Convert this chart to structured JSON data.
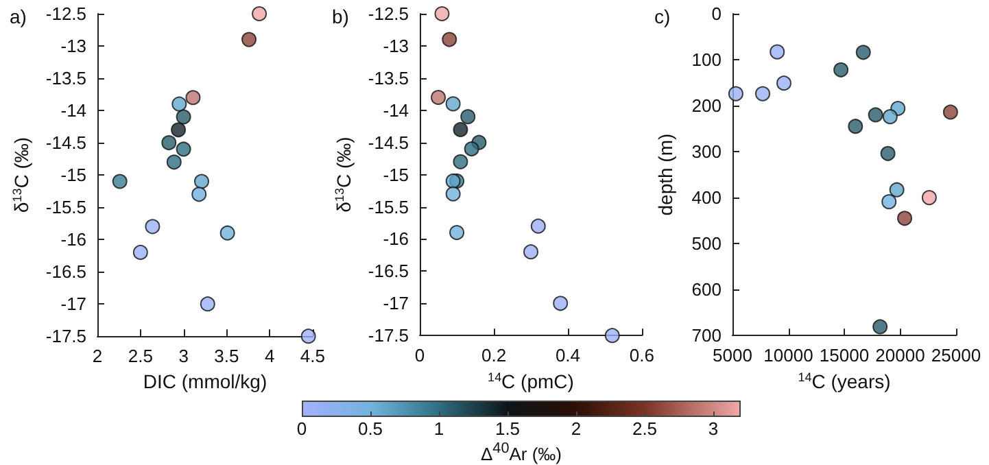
{
  "chart_data": [
    {
      "type": "scatter",
      "title": "a)",
      "xlabel": "DIC (mmol/kg)",
      "ylabel": "δ$^{13}$C (‰)",
      "marker": "circle",
      "xlim": [
        2,
        4.5
      ],
      "xticks": [
        2,
        2.5,
        3,
        3.5,
        4,
        4.5
      ],
      "ylim": [
        -17.5,
        -12.5
      ],
      "yticks": [
        -17.5,
        -17,
        -16.5,
        -16,
        -15.5,
        -15,
        -14.5,
        -14,
        -13.5,
        -13,
        -12.5
      ],
      "x": [
        3.88,
        3.76,
        3.11,
        2.95,
        3.0,
        2.94,
        2.83,
        3.0,
        2.89,
        2.26,
        3.21,
        3.18,
        2.64,
        2.5,
        3.51,
        3.28,
        4.45
      ],
      "values": [
        -12.5,
        -12.9,
        -13.8,
        -13.9,
        -14.1,
        -14.3,
        -14.5,
        -14.6,
        -14.8,
        -15.1,
        -15.1,
        -15.3,
        -15.8,
        -16.2,
        -15.9,
        -17.0,
        -17.5
      ],
      "colors": [
        "#f0a8a8",
        "#8b4338",
        "#be7670",
        "#63a7cc",
        "#285c6c",
        "#14262d",
        "#285c6c",
        "#2e6e80",
        "#2e6e80",
        "#3b7c93",
        "#63a7cc",
        "#70b3dd",
        "#99b1f5",
        "#99b1f5",
        "#70b3dd",
        "#99b1f5",
        "#9eb1f8"
      ]
    },
    {
      "type": "scatter",
      "title": "b)",
      "xlabel": "$^{14}$C (pmC)",
      "ylabel": "δ$^{13}$C (‰)",
      "marker": "circle",
      "xlim": [
        0,
        0.6
      ],
      "xticks": [
        0,
        0.2,
        0.4,
        0.6
      ],
      "ylim": [
        -17.5,
        -12.5
      ],
      "yticks": [
        -17.5,
        -17,
        -16.5,
        -16,
        -15.5,
        -15,
        -14.5,
        -14,
        -13.5,
        -13,
        -12.5
      ],
      "clim": [
        0,
        3.2
      ],
      "clabel": "Δ$^{40}$Ar (‰)",
      "cticks": [
        0,
        0.5,
        1,
        1.5,
        2,
        2.5,
        3
      ],
      "x": [
        0.06,
        0.08,
        0.05,
        0.09,
        0.13,
        0.11,
        0.16,
        0.14,
        0.11,
        0.1,
        0.09,
        0.09,
        0.32,
        0.3,
        0.1,
        0.38,
        0.52
      ],
      "values": [
        -12.5,
        -12.9,
        -13.8,
        -13.9,
        -14.1,
        -14.3,
        -14.5,
        -14.6,
        -14.8,
        -15.1,
        -15.1,
        -15.3,
        -15.8,
        -16.2,
        -15.9,
        -17.0,
        -17.5
      ],
      "cvalues": [
        3.2,
        2.6,
        2.9,
        0.6,
        1.1,
        1.4,
        1.1,
        1.0,
        1.0,
        0.9,
        0.6,
        0.5,
        0.1,
        0.1,
        0.5,
        0.1,
        0.05
      ]
    },
    {
      "type": "scatter",
      "title": "c)",
      "xlabel": "$^{14}$C (years)",
      "ylabel": "depth (m)",
      "marker": "circle",
      "xlim": [
        5000,
        25000
      ],
      "xticks": [
        5000,
        10000,
        15000,
        20000,
        25000
      ],
      "ylim": [
        700,
        0
      ],
      "yticks": [
        0,
        100,
        200,
        300,
        400,
        500,
        600,
        700
      ],
      "x": [
        9000,
        5300,
        7700,
        9600,
        16700,
        14700,
        19800,
        17800,
        19100,
        24500,
        16000,
        18900,
        19700,
        19000,
        22600,
        20400,
        18200
      ],
      "values": [
        83,
        174,
        174,
        151,
        84,
        122,
        206,
        220,
        224,
        214,
        245,
        304,
        383,
        409,
        400,
        445,
        681
      ],
      "colors": [
        "#99b1f5",
        "#99b1f5",
        "#99b1f5",
        "#99b1f5",
        "#285c6c",
        "#285c6c",
        "#63a7cc",
        "#285c6c",
        "#63a7cc",
        "#8b4338",
        "#285c6c",
        "#285c6c",
        "#63a7cc",
        "#70b3dd",
        "#f0a8a8",
        "#8b4338",
        "#285c6c"
      ]
    }
  ]
}
